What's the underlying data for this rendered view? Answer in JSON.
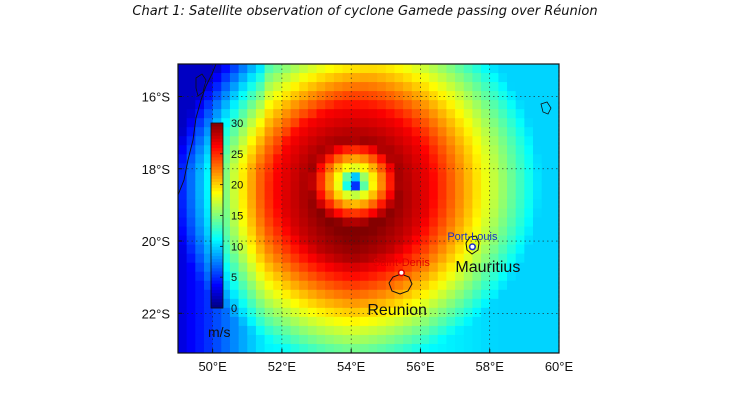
{
  "title": "Chart 1: Satellite observation of cyclone Gamede passing over Réunion",
  "map": {
    "lon_range": [
      49,
      60
    ],
    "lat_range": [
      -23.1,
      -15.1
    ],
    "lon_ticks": [
      50,
      52,
      54,
      56,
      58,
      60
    ],
    "lon_tick_labels": [
      "50°E",
      "52°E",
      "54°E",
      "56°E",
      "58°E",
      "60°E"
    ],
    "lat_ticks": [
      -16,
      -18,
      -20,
      -22
    ],
    "lat_tick_labels": [
      "16°S",
      "18°S",
      "20°S",
      "22°S"
    ],
    "field": "wind speed",
    "cyclone_eye": {
      "lon": 54.1,
      "lat": -18.4
    },
    "colorbar": {
      "min": 0,
      "max": 30,
      "ticks": [
        0,
        5,
        10,
        15,
        20,
        25,
        30
      ],
      "tick_labels": [
        "0",
        "5",
        "10",
        "15",
        "20",
        "25",
        "30"
      ],
      "unit": "m/s"
    },
    "places": [
      {
        "label": "Reunion",
        "lon": 55.5,
        "lat": -21.1,
        "kind": "island",
        "color": "#111111"
      },
      {
        "label": "Mauritius",
        "lon": 57.6,
        "lat": -20.25,
        "kind": "island",
        "color": "#111111"
      }
    ],
    "cities": [
      {
        "label": "Saint-Denis",
        "lon": 55.45,
        "lat": -20.88,
        "color": "#e00000"
      },
      {
        "label": "Port-Louis",
        "lon": 57.5,
        "lat": -20.16,
        "color": "#1f2fc8"
      }
    ]
  }
}
